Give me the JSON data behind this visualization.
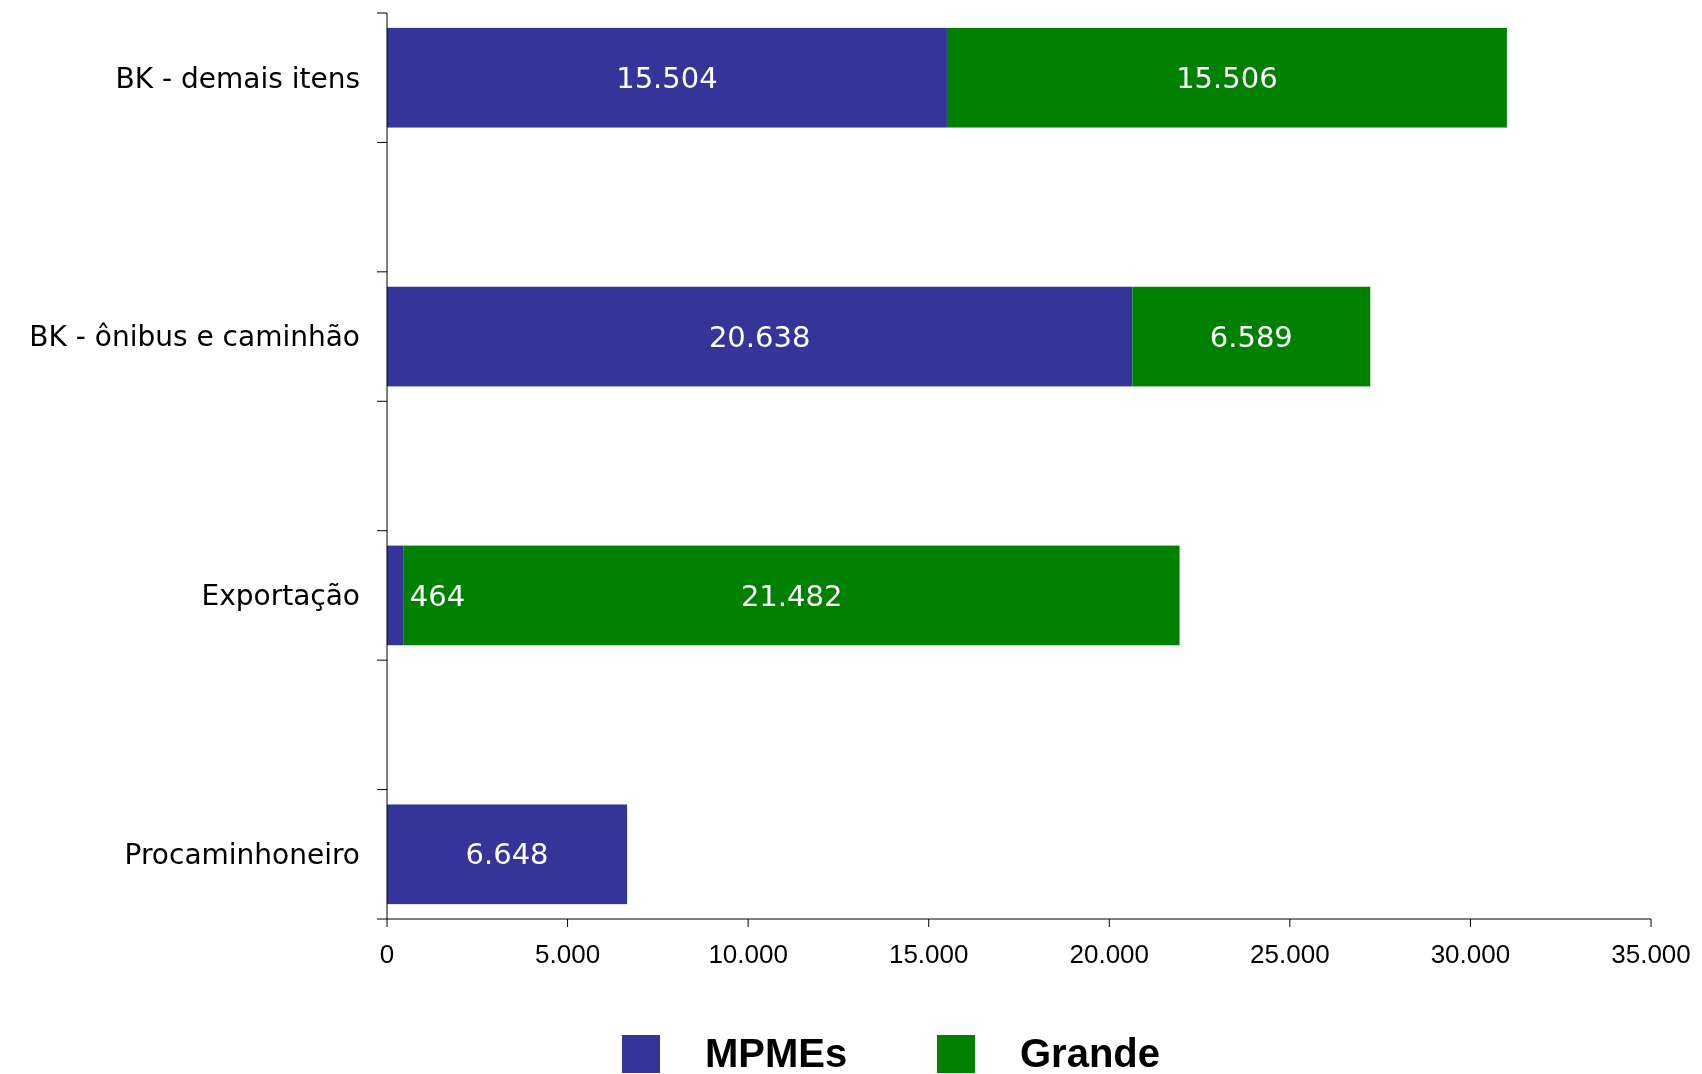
{
  "chart_data": {
    "type": "bar",
    "orientation": "horizontal",
    "stacked": true,
    "categories": [
      "BK - demais itens",
      null,
      "BK - ônibus e caminhão",
      null,
      "Exportação",
      null,
      "Procaminhoneiro"
    ],
    "series": [
      {
        "name": "MPMEs",
        "color": "#353599",
        "values": [
          15504,
          null,
          20638,
          null,
          464,
          null,
          6648
        ],
        "value_labels": [
          "15.504",
          null,
          "20.638",
          null,
          "464",
          null,
          "6.648"
        ]
      },
      {
        "name": "Grande",
        "color": "#008000",
        "values": [
          15506,
          null,
          6589,
          null,
          21482,
          null,
          null
        ],
        "value_labels": [
          "15.506",
          null,
          "6.589",
          null,
          "21.482",
          null,
          null
        ]
      }
    ],
    "xlim": [
      0,
      35000
    ],
    "xticks": [
      0,
      {
        "value": 5000,
        "label": "5.000"
      },
      {
        "value": 10000,
        "label": "10.000"
      },
      {
        "value": 15000,
        "label": "15.000"
      },
      {
        "value": 20000,
        "label": "20.000"
      },
      {
        "value": 25000,
        "label": "25.000"
      },
      {
        "value": 30000,
        "label": "30.000"
      },
      {
        "value": 35000,
        "label": "35.000"
      }
    ],
    "legend": "bottom",
    "grid": false
  }
}
